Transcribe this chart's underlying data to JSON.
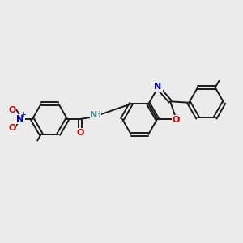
{
  "bg_color": "#ebebeb",
  "bond_color": "#1a1a1a",
  "bond_width": 1.4,
  "N_color": "#0000cc",
  "O_color": "#cc0000",
  "NH_color": "#4a9090",
  "font_size": 8,
  "fig_width": 3.0,
  "fig_height": 3.0,
  "dpi": 100,
  "xlim": [
    0,
    10
  ],
  "ylim": [
    0,
    10
  ]
}
